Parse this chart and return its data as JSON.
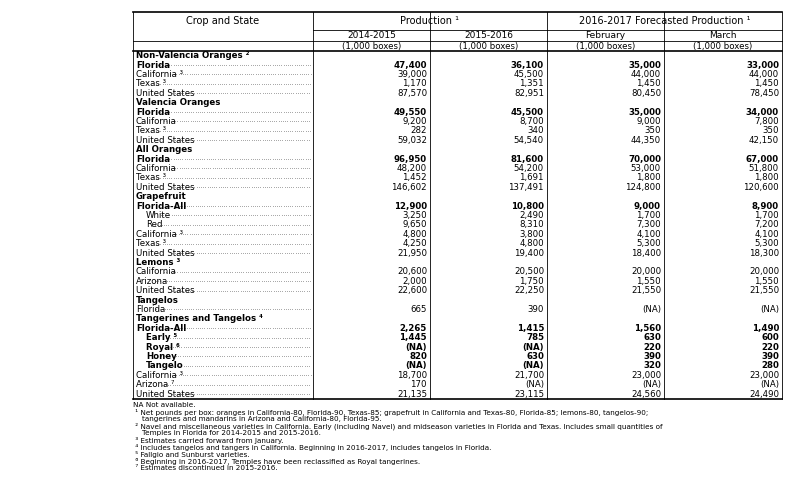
{
  "col_headers_row1": [
    "Crop and State",
    "Production ¹",
    "",
    "2016-2017 Forecasted Production ¹",
    ""
  ],
  "col_headers_row2": [
    "",
    "2014-2015",
    "2015-2016",
    "February",
    "March"
  ],
  "col_headers_row3": [
    "",
    "(1,000 boxes)",
    "(1,000 boxes)",
    "(1,000 boxes)",
    "(1,000 boxes)"
  ],
  "rows": [
    {
      "label": "Non-Valencia Oranges ²",
      "values": [
        "",
        "",
        "",
        ""
      ],
      "bold": false,
      "header": true,
      "indent": 0
    },
    {
      "label": "Florida",
      "values": [
        "47,400",
        "36,100",
        "35,000",
        "33,000"
      ],
      "bold": true,
      "header": false,
      "indent": 0
    },
    {
      "label": "California ³",
      "values": [
        "39,000",
        "45,500",
        "44,000",
        "44,000"
      ],
      "bold": false,
      "header": false,
      "indent": 0
    },
    {
      "label": "Texas ³",
      "values": [
        "1,170",
        "1,351",
        "1,450",
        "1,450"
      ],
      "bold": false,
      "header": false,
      "indent": 0
    },
    {
      "label": "United States",
      "values": [
        "87,570",
        "82,951",
        "80,450",
        "78,450"
      ],
      "bold": false,
      "header": false,
      "indent": 0
    },
    {
      "label": "Valencia Oranges",
      "values": [
        "",
        "",
        "",
        ""
      ],
      "bold": false,
      "header": true,
      "indent": 0
    },
    {
      "label": "Florida",
      "values": [
        "49,550",
        "45,500",
        "35,000",
        "34,000"
      ],
      "bold": true,
      "header": false,
      "indent": 0
    },
    {
      "label": "California",
      "values": [
        "9,200",
        "8,700",
        "9,000",
        "7,800"
      ],
      "bold": false,
      "header": false,
      "indent": 0
    },
    {
      "label": "Texas ³",
      "values": [
        "282",
        "340",
        "350",
        "350"
      ],
      "bold": false,
      "header": false,
      "indent": 0
    },
    {
      "label": "United States",
      "values": [
        "59,032",
        "54,540",
        "44,350",
        "42,150"
      ],
      "bold": false,
      "header": false,
      "indent": 0
    },
    {
      "label": "All Oranges",
      "values": [
        "",
        "",
        "",
        ""
      ],
      "bold": false,
      "header": true,
      "indent": 0
    },
    {
      "label": "Florida",
      "values": [
        "96,950",
        "81,600",
        "70,000",
        "67,000"
      ],
      "bold": true,
      "header": false,
      "indent": 0
    },
    {
      "label": "California",
      "values": [
        "48,200",
        "54,200",
        "53,000",
        "51,800"
      ],
      "bold": false,
      "header": false,
      "indent": 0
    },
    {
      "label": "Texas ³",
      "values": [
        "1,452",
        "1,691",
        "1,800",
        "1,800"
      ],
      "bold": false,
      "header": false,
      "indent": 0
    },
    {
      "label": "United States",
      "values": [
        "146,602",
        "137,491",
        "124,800",
        "120,600"
      ],
      "bold": false,
      "header": false,
      "indent": 0
    },
    {
      "label": "Grapefruit",
      "values": [
        "",
        "",
        "",
        ""
      ],
      "bold": false,
      "header": true,
      "indent": 0
    },
    {
      "label": "Florida-All",
      "values": [
        "12,900",
        "10,800",
        "9,000",
        "8,900"
      ],
      "bold": true,
      "header": false,
      "indent": 0
    },
    {
      "label": "White",
      "values": [
        "3,250",
        "2,490",
        "1,700",
        "1,700"
      ],
      "bold": false,
      "header": false,
      "indent": 1
    },
    {
      "label": "Red",
      "values": [
        "9,650",
        "8,310",
        "7,300",
        "7,200"
      ],
      "bold": false,
      "header": false,
      "indent": 1
    },
    {
      "label": "California ³",
      "values": [
        "4,800",
        "3,800",
        "4,100",
        "4,100"
      ],
      "bold": false,
      "header": false,
      "indent": 0
    },
    {
      "label": "Texas ³",
      "values": [
        "4,250",
        "4,800",
        "5,300",
        "5,300"
      ],
      "bold": false,
      "header": false,
      "indent": 0
    },
    {
      "label": "United States",
      "values": [
        "21,950",
        "19,400",
        "18,400",
        "18,300"
      ],
      "bold": false,
      "header": false,
      "indent": 0
    },
    {
      "label": "Lemons ³",
      "values": [
        "",
        "",
        "",
        ""
      ],
      "bold": false,
      "header": true,
      "indent": 0
    },
    {
      "label": "California",
      "values": [
        "20,600",
        "20,500",
        "20,000",
        "20,000"
      ],
      "bold": false,
      "header": false,
      "indent": 0
    },
    {
      "label": "Arizona",
      "values": [
        "2,000",
        "1,750",
        "1,550",
        "1,550"
      ],
      "bold": false,
      "header": false,
      "indent": 0
    },
    {
      "label": "United States",
      "values": [
        "22,600",
        "22,250",
        "21,550",
        "21,550"
      ],
      "bold": false,
      "header": false,
      "indent": 0
    },
    {
      "label": "Tangelos",
      "values": [
        "",
        "",
        "",
        ""
      ],
      "bold": false,
      "header": true,
      "indent": 0
    },
    {
      "label": "Florida",
      "values": [
        "665",
        "390",
        "(NA)",
        "(NA)"
      ],
      "bold": false,
      "header": false,
      "indent": 0
    },
    {
      "label": "Tangerines and Tangelos ⁴",
      "values": [
        "",
        "",
        "",
        ""
      ],
      "bold": false,
      "header": true,
      "indent": 0
    },
    {
      "label": "Florida-All",
      "values": [
        "2,265",
        "1,415",
        "1,560",
        "1,490"
      ],
      "bold": true,
      "header": false,
      "indent": 0
    },
    {
      "label": "Early ⁵",
      "values": [
        "1,445",
        "785",
        "630",
        "600"
      ],
      "bold": true,
      "header": false,
      "indent": 1
    },
    {
      "label": "Royal ⁶",
      "values": [
        "(NA)",
        "(NA)",
        "220",
        "220"
      ],
      "bold": true,
      "header": false,
      "indent": 1
    },
    {
      "label": "Honey",
      "values": [
        "820",
        "630",
        "390",
        "390"
      ],
      "bold": true,
      "header": false,
      "indent": 1
    },
    {
      "label": "Tangelo",
      "values": [
        "(NA)",
        "(NA)",
        "320",
        "280"
      ],
      "bold": true,
      "header": false,
      "indent": 1
    },
    {
      "label": "California ³",
      "values": [
        "18,700",
        "21,700",
        "23,000",
        "23,000"
      ],
      "bold": false,
      "header": false,
      "indent": 0
    },
    {
      "label": "Arizona ⁷",
      "values": [
        "170",
        "(NA)",
        "(NA)",
        "(NA)"
      ],
      "bold": false,
      "header": false,
      "indent": 0
    },
    {
      "label": "United States",
      "values": [
        "21,135",
        "23,115",
        "24,560",
        "24,490"
      ],
      "bold": false,
      "header": false,
      "indent": 0
    }
  ],
  "footnotes": [
    "NA Not available.",
    " ¹ Net pounds per box: oranges in California-80, Florida-90, Texas-85; grapefruit in California and Texas-80, Florida-85; lemons-80, tangelos-90;",
    "    tangerines and mandarins in Arizona and California-80, Florida-95.",
    " ² Navel and miscellaneous varieties in California. Early (including Navel) and midseason varieties in Florida and Texas. Includes small quantities of",
    "    Temples in Florida for 2014-2015 and 2015-2016.",
    " ³ Estimates carried forward from January.",
    " ⁴ Includes tangelos and tangers in California. Beginning in 2016-2017, includes tangelos in Florida.",
    " ⁵ Fallgio and Sunburst varieties.",
    " ⁶ Beginning in 2016-2017, Temples have been reclassified as Royal tangerines.",
    " ⁷ Estimates discontinued in 2015-2016."
  ]
}
